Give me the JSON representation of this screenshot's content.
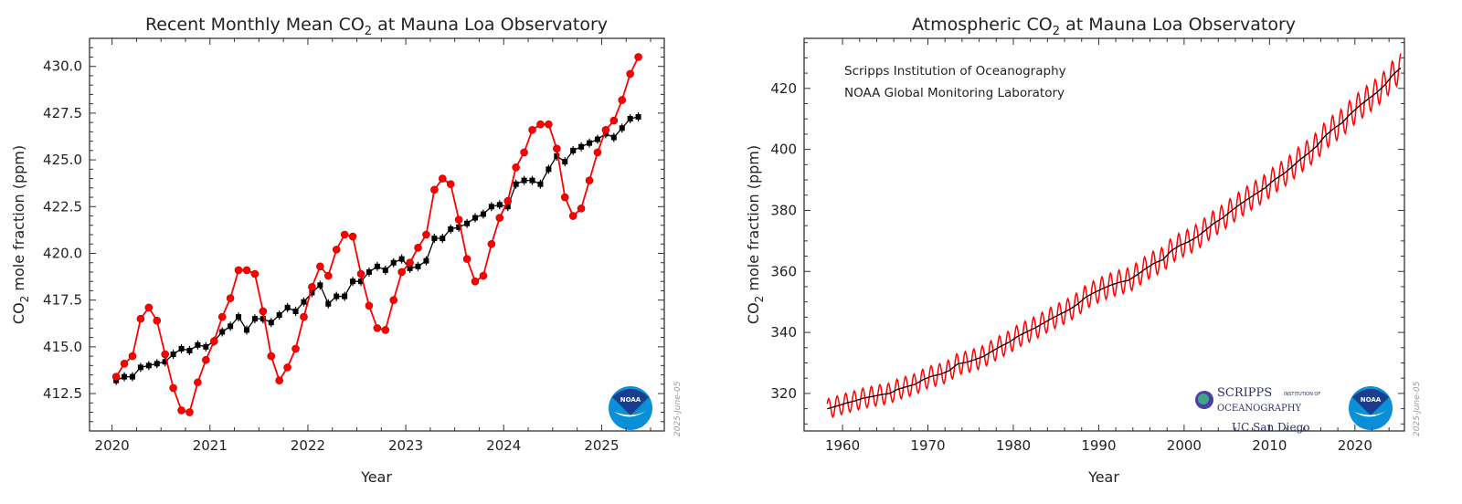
{
  "colors": {
    "monthly": "#ff0000",
    "deseasonalized": "#000000",
    "noaa_dark": "#1a3e8c",
    "noaa_light": "#0a8fd8"
  },
  "chart_data": [
    {
      "type": "line",
      "title": "Recent Monthly Mean CO",
      "title_sub": "2",
      "title_rest": " at Mauna Loa Observatory",
      "xlabel": "Year",
      "ylabel_pre": "CO",
      "ylabel_sub": "2",
      "ylabel_post": " mole fraction (ppm)",
      "xlim": [
        2019.77,
        2025.64
      ],
      "ylim": [
        410.5,
        431.5
      ],
      "xticks": [
        2020,
        2021,
        2022,
        2023,
        2024,
        2025
      ],
      "xtick_labels": [
        "2020",
        "2021",
        "2022",
        "2023",
        "2024",
        "2025"
      ],
      "yticks": [
        412.5,
        415.0,
        417.5,
        420.0,
        422.5,
        425.0,
        427.5,
        430.0
      ],
      "ytick_labels": [
        "412.5",
        "415.0",
        "417.5",
        "420.0",
        "422.5",
        "425.0",
        "427.5",
        "430.0"
      ],
      "start_year": 2020,
      "date_stamp": "2025-June-05",
      "logo": "NOAA",
      "series": [
        {
          "name": "monthly mean",
          "color": "#ff0000",
          "marker": "circle",
          "values": [
            413.4,
            414.1,
            414.5,
            416.5,
            417.1,
            416.4,
            414.6,
            412.8,
            411.6,
            411.5,
            413.1,
            414.3,
            415.3,
            416.6,
            417.6,
            419.1,
            419.1,
            418.9,
            416.9,
            414.5,
            413.2,
            413.9,
            414.9,
            416.6,
            418.2,
            419.3,
            418.8,
            420.2,
            421.0,
            420.9,
            418.9,
            417.2,
            416.0,
            415.9,
            417.5,
            419.0,
            419.5,
            420.3,
            421.0,
            423.4,
            424.0,
            423.7,
            421.8,
            419.7,
            418.5,
            418.8,
            420.5,
            421.9,
            422.8,
            424.6,
            425.4,
            426.6,
            426.9,
            426.9,
            425.6,
            423.0,
            422.0,
            422.4,
            423.9,
            425.4,
            426.6,
            427.1,
            428.2,
            429.6,
            430.5
          ]
        },
        {
          "name": "deseasonalized",
          "color": "#000000",
          "marker": "square",
          "values": [
            413.2,
            413.4,
            413.4,
            413.9,
            414.0,
            414.1,
            414.2,
            414.6,
            414.9,
            414.8,
            415.1,
            415.0,
            415.3,
            415.8,
            416.1,
            416.6,
            415.9,
            416.5,
            416.5,
            416.3,
            416.7,
            417.1,
            416.9,
            417.4,
            417.9,
            418.3,
            417.3,
            417.7,
            417.7,
            418.5,
            418.5,
            419.0,
            419.3,
            419.1,
            419.5,
            419.7,
            419.2,
            419.3,
            419.6,
            420.8,
            420.8,
            421.3,
            421.4,
            421.6,
            421.9,
            422.1,
            422.5,
            422.6,
            422.5,
            423.7,
            423.9,
            423.9,
            423.7,
            424.5,
            425.2,
            424.9,
            425.5,
            425.7,
            425.9,
            426.1,
            426.4,
            426.2,
            426.7,
            427.2,
            427.3
          ]
        }
      ]
    },
    {
      "type": "line",
      "title": "Atmospheric CO",
      "title_sub": "2",
      "title_rest": " at Mauna Loa Observatory",
      "xlabel": "Year",
      "ylabel_pre": "CO",
      "ylabel_sub": "2",
      "ylabel_post": " mole fraction (ppm)",
      "xlim": [
        1955.5,
        2025.8
      ],
      "ylim": [
        307.7,
        436.4
      ],
      "xticks": [
        1960,
        1970,
        1980,
        1990,
        2000,
        2010,
        2020
      ],
      "xtick_labels": [
        "1960",
        "1970",
        "1980",
        "1990",
        "2000",
        "2010",
        "2020"
      ],
      "yticks": [
        320,
        340,
        360,
        380,
        400,
        420
      ],
      "ytick_labels": [
        "320",
        "340",
        "360",
        "380",
        "400",
        "420"
      ],
      "annotations": [
        "Scripps Institution of Oceanography",
        "NOAA Global Monitoring Laboratory"
      ],
      "date_stamp": "2025-June-05",
      "logos": [
        "SCRIPPS",
        "INSTITUTION OF",
        "OCEANOGRAPHY",
        "UC San Diego",
        "NOAA"
      ],
      "start_year": 1958,
      "seasonal_amplitude_ppm": 3.2,
      "series": [
        {
          "name": "annual trend (deseasonalized)",
          "color": "#000000",
          "values": [
            315.2,
            316.0,
            316.9,
            317.6,
            318.5,
            319.0,
            319.6,
            320.0,
            321.4,
            322.2,
            323.0,
            324.6,
            325.7,
            326.3,
            327.5,
            329.7,
            330.2,
            331.1,
            332.1,
            333.8,
            335.4,
            336.8,
            338.7,
            340.1,
            341.4,
            343.0,
            344.6,
            346.0,
            347.4,
            349.2,
            351.6,
            353.1,
            354.4,
            355.6,
            356.5,
            357.1,
            358.9,
            360.9,
            362.7,
            363.8,
            366.8,
            368.5,
            369.7,
            371.3,
            373.5,
            375.8,
            377.5,
            379.8,
            381.9,
            383.8,
            385.6,
            387.4,
            389.9,
            391.7,
            393.9,
            396.5,
            398.6,
            401.0,
            404.4,
            406.8,
            408.7,
            411.7,
            414.2,
            416.4,
            418.5,
            421.1,
            424.6,
            427.0
          ]
        },
        {
          "name": "monthly mean",
          "color": "#ff0000",
          "derived": "annual trend plus seasonal cycle"
        }
      ]
    }
  ]
}
